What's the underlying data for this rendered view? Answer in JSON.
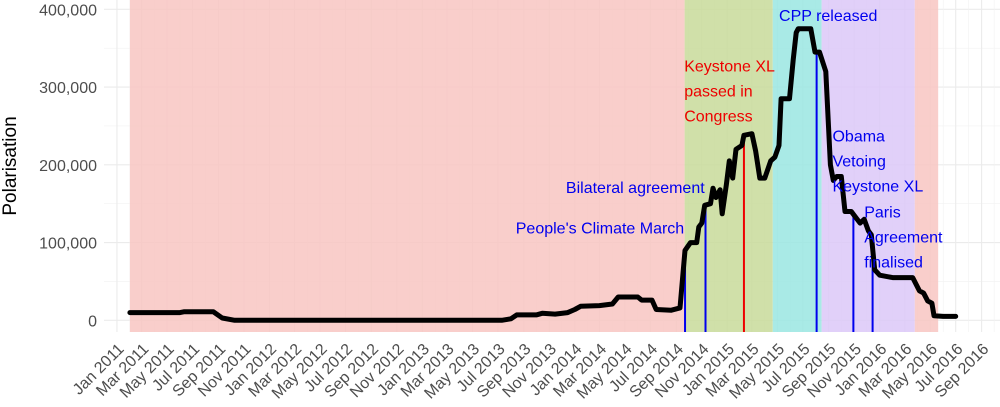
{
  "chart_data": {
    "type": "line",
    "title": "",
    "xlabel": "",
    "ylabel": "Polarisation",
    "ylim": [
      -15000,
      412000
    ],
    "xlim": [
      "2010-12-01",
      "2016-10-15"
    ],
    "grid": true,
    "x_tick_labels": [
      "Jan 2011",
      "Mar 2011",
      "May 2011",
      "Jul 2011",
      "Sep 2011",
      "Nov 2011",
      "Jan 2012",
      "Mar 2012",
      "May 2012",
      "Jul 2012",
      "Sep 2012",
      "Nov 2012",
      "Jan 2013",
      "Mar 2013",
      "May 2013",
      "Jul 2013",
      "Sep 2013",
      "Nov 2013",
      "Jan 2014",
      "Mar 2014",
      "May 2014",
      "Jul 2014",
      "Sep 2014",
      "Nov 2014",
      "Jan 2015",
      "Mar 2015",
      "May 2015",
      "Jul 2015",
      "Sep 2015",
      "Nov 2015",
      "Jan 2016",
      "Mar 2016",
      "May 2016",
      "Jul 2016",
      "Sep 2016"
    ],
    "y_ticks": [
      {
        "value": 0,
        "label": "0"
      },
      {
        "value": 100000,
        "label": "100,000"
      },
      {
        "value": 200000,
        "label": "200,000"
      },
      {
        "value": 300000,
        "label": "300,000"
      },
      {
        "value": 400000,
        "label": "400,000"
      }
    ],
    "regions": [
      {
        "start": "2011-02-01",
        "end": "2014-09-21",
        "color": "#f8c6c2"
      },
      {
        "start": "2014-09-21",
        "end": "2015-04-20",
        "color": "#c8da9a"
      },
      {
        "start": "2015-04-20",
        "end": "2015-08-15",
        "color": "#9ae6e2"
      },
      {
        "start": "2015-08-15",
        "end": "2016-03-25",
        "color": "#dcc8f8"
      },
      {
        "start": "2016-03-25",
        "end": "2016-05-20",
        "color": "#f8c6c2"
      }
    ],
    "series": [
      {
        "color": "#000000",
        "points": [
          [
            "2011-02-01",
            10000
          ],
          [
            "2011-06-01",
            10000
          ],
          [
            "2011-06-10",
            11000
          ],
          [
            "2011-08-20",
            11000
          ],
          [
            "2011-09-10",
            3000
          ],
          [
            "2011-10-10",
            0
          ],
          [
            "2013-07-10",
            0
          ],
          [
            "2013-08-01",
            2000
          ],
          [
            "2013-08-15",
            7000
          ],
          [
            "2013-10-01",
            7000
          ],
          [
            "2013-10-15",
            9000
          ],
          [
            "2013-11-15",
            8000
          ],
          [
            "2013-12-15",
            10000
          ],
          [
            "2014-01-01",
            14000
          ],
          [
            "2014-01-15",
            18000
          ],
          [
            "2014-03-01",
            19000
          ],
          [
            "2014-04-01",
            21000
          ],
          [
            "2014-04-15",
            30000
          ],
          [
            "2014-06-01",
            30000
          ],
          [
            "2014-06-10",
            26000
          ],
          [
            "2014-07-05",
            26000
          ],
          [
            "2014-07-15",
            14000
          ],
          [
            "2014-08-20",
            13000
          ],
          [
            "2014-09-10",
            16000
          ],
          [
            "2014-09-22",
            90000
          ],
          [
            "2014-10-05",
            100000
          ],
          [
            "2014-10-20",
            100000
          ],
          [
            "2014-10-25",
            120000
          ],
          [
            "2014-11-01",
            125000
          ],
          [
            "2014-11-08",
            148000
          ],
          [
            "2014-11-22",
            150000
          ],
          [
            "2014-11-28",
            170000
          ],
          [
            "2014-12-05",
            158000
          ],
          [
            "2014-12-15",
            168000
          ],
          [
            "2014-12-20",
            137000
          ],
          [
            "2014-12-30",
            175000
          ],
          [
            "2015-01-06",
            205000
          ],
          [
            "2015-01-14",
            183000
          ],
          [
            "2015-01-22",
            220000
          ],
          [
            "2015-02-05",
            225000
          ],
          [
            "2015-02-10",
            238000
          ],
          [
            "2015-03-01",
            240000
          ],
          [
            "2015-03-10",
            218000
          ],
          [
            "2015-03-20",
            183000
          ],
          [
            "2015-04-01",
            183000
          ],
          [
            "2015-04-15",
            205000
          ],
          [
            "2015-04-25",
            210000
          ],
          [
            "2015-05-05",
            225000
          ],
          [
            "2015-05-10",
            285000
          ],
          [
            "2015-05-30",
            285000
          ],
          [
            "2015-06-08",
            335000
          ],
          [
            "2015-06-15",
            370000
          ],
          [
            "2015-06-20",
            375000
          ],
          [
            "2015-07-20",
            375000
          ],
          [
            "2015-07-30",
            345000
          ],
          [
            "2015-08-10",
            345000
          ],
          [
            "2015-08-25",
            320000
          ],
          [
            "2015-09-05",
            200000
          ],
          [
            "2015-09-12",
            180000
          ],
          [
            "2015-09-20",
            185000
          ],
          [
            "2015-10-01",
            185000
          ],
          [
            "2015-10-10",
            140000
          ],
          [
            "2015-10-25",
            140000
          ],
          [
            "2015-11-01",
            135000
          ],
          [
            "2015-11-15",
            125000
          ],
          [
            "2015-11-25",
            130000
          ],
          [
            "2015-12-05",
            115000
          ],
          [
            "2015-12-12",
            110000
          ],
          [
            "2015-12-20",
            65000
          ],
          [
            "2016-01-01",
            58000
          ],
          [
            "2016-02-01",
            55000
          ],
          [
            "2016-03-20",
            55000
          ],
          [
            "2016-04-05",
            38000
          ],
          [
            "2016-04-15",
            35000
          ],
          [
            "2016-04-25",
            25000
          ],
          [
            "2016-05-05",
            22000
          ],
          [
            "2016-05-10",
            6000
          ],
          [
            "2016-06-01",
            5000
          ],
          [
            "2016-07-01",
            5000
          ]
        ]
      }
    ],
    "events": [
      {
        "date": "2014-09-22",
        "value": 92000,
        "color": "#0000ee"
      },
      {
        "date": "2014-11-10",
        "value": 148000,
        "color": "#0000ee"
      },
      {
        "date": "2015-02-10",
        "value": 238000,
        "color": "#ee0000"
      },
      {
        "date": "2015-08-03",
        "value": 345000,
        "color": "#0000ee"
      },
      {
        "date": "2015-10-30",
        "value": 135000,
        "color": "#0000ee"
      },
      {
        "date": "2015-12-15",
        "value": 110000,
        "color": "#0000ee"
      }
    ],
    "annotations": [
      {
        "lines": [
          "People's Climate March"
        ],
        "color": "#0000ee",
        "anchor": "end",
        "date": "2014-09-20",
        "value": 112000
      },
      {
        "lines": [
          "Bilateral agreement"
        ],
        "color": "#0000ee",
        "anchor": "end",
        "date": "2014-11-08",
        "value": 164000
      },
      {
        "lines": [
          "Keystone XL",
          "passed in",
          "Congress"
        ],
        "color": "#ee0000",
        "anchor": "start",
        "date": "2014-09-20",
        "value": 320000
      },
      {
        "lines": [
          "CPP released"
        ],
        "color": "#0000ee",
        "anchor": "start",
        "date": "2015-05-05",
        "value": 385000
      },
      {
        "lines": [
          "Obama",
          "Vetoing",
          "Keystone XL"
        ],
        "color": "#0000ee",
        "anchor": "start",
        "date": "2015-09-10",
        "value": 230000
      },
      {
        "lines": [
          "Paris",
          "Agreement",
          "finalised"
        ],
        "color": "#0000ee",
        "anchor": "start",
        "date": "2015-11-25",
        "value": 132000
      }
    ]
  }
}
